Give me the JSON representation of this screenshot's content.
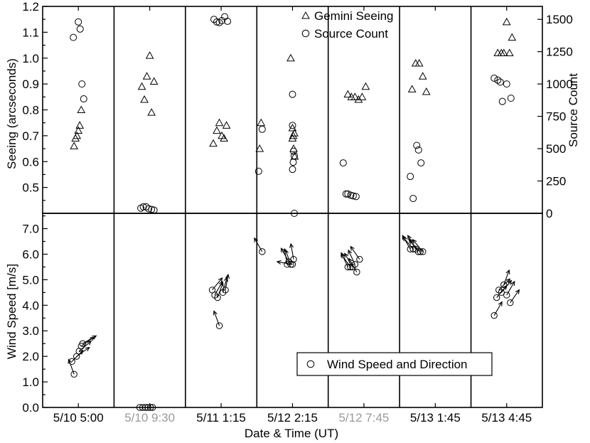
{
  "chart_data": [
    {
      "type": "scatter",
      "panel": "seeing",
      "xlabel": "Date & Time (UT)",
      "ylabel": "Seeing (arcseconds)",
      "ylabel_right": "Source Count",
      "ylim": [
        0.4,
        1.2
      ],
      "ylim_right": [
        0,
        1600
      ],
      "yticks": [
        "0.5",
        "0.6",
        "0.7",
        "0.8",
        "0.9",
        "1.0",
        "1.1",
        "1.2"
      ],
      "yticks_right": [
        "0",
        "250",
        "500",
        "750",
        "1000",
        "1250",
        "1500"
      ],
      "categories": [
        {
          "label": "5/10 5:00",
          "grey": false
        },
        {
          "label": "5/10 9:30",
          "grey": true
        },
        {
          "label": "5/11 1:15",
          "grey": false
        },
        {
          "label": "5/12 2:15",
          "grey": false
        },
        {
          "label": "5/12 7:45",
          "grey": true
        },
        {
          "label": "5/13 1:45",
          "grey": false
        },
        {
          "label": "5/13 4:45",
          "grey": false
        }
      ],
      "legend": [
        "Gemini Seeing",
        "Source Count"
      ],
      "legend_position": "top-center",
      "series": [
        {
          "name": "Gemini Seeing",
          "axis": "left",
          "marker": "triangle",
          "points": [
            [
              0,
              -0.12,
              0.66
            ],
            [
              0,
              -0.08,
              0.69
            ],
            [
              0,
              -0.04,
              0.7
            ],
            [
              0,
              0.0,
              0.72
            ],
            [
              0,
              0.04,
              0.74
            ],
            [
              0,
              0.08,
              0.8
            ],
            [
              1,
              -0.22,
              0.89
            ],
            [
              1,
              -0.15,
              0.84
            ],
            [
              1,
              -0.08,
              0.93
            ],
            [
              1,
              0.0,
              1.01
            ],
            [
              1,
              0.05,
              0.79
            ],
            [
              1,
              0.12,
              0.91
            ],
            [
              2,
              -0.22,
              0.67
            ],
            [
              2,
              -0.12,
              0.72
            ],
            [
              2,
              -0.05,
              0.75
            ],
            [
              2,
              0.02,
              0.7
            ],
            [
              2,
              0.08,
              0.69
            ],
            [
              2,
              0.15,
              0.74
            ],
            [
              3,
              -0.92,
              0.65
            ],
            [
              3,
              -0.88,
              0.75
            ],
            [
              3,
              -0.05,
              1.0
            ],
            [
              3,
              0.0,
              0.73
            ],
            [
              3,
              0.05,
              0.71
            ],
            [
              3,
              0.0,
              0.69
            ],
            [
              3,
              0.03,
              0.65
            ],
            [
              3,
              0.06,
              0.62
            ],
            [
              3,
              0.02,
              0.7
            ],
            [
              4,
              -0.45,
              0.86
            ],
            [
              4,
              -0.35,
              0.85
            ],
            [
              4,
              -0.25,
              0.85
            ],
            [
              4,
              -0.15,
              0.84
            ],
            [
              4,
              -0.05,
              0.85
            ],
            [
              4,
              0.05,
              0.89
            ],
            [
              5,
              -0.65,
              0.88
            ],
            [
              5,
              -0.55,
              0.98
            ],
            [
              5,
              -0.45,
              0.98
            ],
            [
              5,
              -0.35,
              0.93
            ],
            [
              5,
              -0.25,
              0.87
            ],
            [
              6,
              -0.25,
              1.02
            ],
            [
              6,
              -0.15,
              1.02
            ],
            [
              6,
              -0.08,
              1.02
            ],
            [
              6,
              0.0,
              1.14
            ],
            [
              6,
              0.08,
              1.02
            ],
            [
              6,
              0.15,
              1.08
            ]
          ]
        },
        {
          "name": "Source Count",
          "axis": "right",
          "marker": "circle",
          "points": [
            [
              0,
              -0.14,
              1360
            ],
            [
              0,
              0.0,
              1480
            ],
            [
              0,
              0.05,
              1425
            ],
            [
              0,
              0.1,
              1000
            ],
            [
              0,
              0.15,
              885
            ],
            [
              1,
              -0.25,
              40
            ],
            [
              1,
              -0.18,
              50
            ],
            [
              1,
              -0.1,
              50
            ],
            [
              1,
              -0.03,
              35
            ],
            [
              1,
              0.05,
              30
            ],
            [
              1,
              0.12,
              25
            ],
            [
              2,
              -0.2,
              1500
            ],
            [
              2,
              -0.12,
              1480
            ],
            [
              2,
              -0.05,
              1475
            ],
            [
              2,
              0.02,
              1490
            ],
            [
              2,
              0.1,
              1520
            ],
            [
              2,
              0.18,
              1485
            ],
            [
              3,
              -0.95,
              325
            ],
            [
              3,
              -0.85,
              650
            ],
            [
              3,
              0.0,
              920
            ],
            [
              3,
              0.0,
              680
            ],
            [
              3,
              0.03,
              480
            ],
            [
              3,
              0.05,
              445
            ],
            [
              3,
              0.02,
              395
            ],
            [
              3,
              0.0,
              340
            ],
            [
              3,
              0.05,
              0
            ],
            [
              4,
              -0.58,
              390
            ],
            [
              4,
              -0.5,
              150
            ],
            [
              4,
              -0.45,
              150
            ],
            [
              4,
              -0.37,
              140
            ],
            [
              4,
              -0.3,
              135
            ],
            [
              4,
              -0.22,
              130
            ],
            [
              5,
              -0.7,
              285
            ],
            [
              5,
              -0.62,
              115
            ],
            [
              5,
              -0.52,
              525
            ],
            [
              5,
              -0.47,
              490
            ],
            [
              5,
              -0.4,
              390
            ],
            [
              6,
              -0.35,
              1045
            ],
            [
              6,
              -0.25,
              1030
            ],
            [
              6,
              -0.18,
              1015
            ],
            [
              6,
              -0.12,
              865
            ],
            [
              6,
              0.0,
              1000
            ],
            [
              6,
              0.12,
              890
            ]
          ]
        }
      ]
    },
    {
      "type": "scatter",
      "panel": "wind",
      "xlabel": "Date & Time (UT)",
      "ylabel": "Wind Speed [m/s]",
      "ylim": [
        0.0,
        7.6
      ],
      "yticks": [
        "0.0",
        "1.0",
        "2.0",
        "3.0",
        "4.0",
        "5.0",
        "6.0",
        "7.0"
      ],
      "legend": [
        "Wind Speed and Direction"
      ],
      "legend_position": "bottom-right",
      "series": [
        {
          "name": "Wind Speed and Direction",
          "marker": "circle-with-arrow",
          "points": [
            [
              0,
              -0.18,
              1.8,
              -45
            ],
            [
              0,
              -0.12,
              1.3,
              -110
            ],
            [
              0,
              -0.05,
              2.0,
              -35
            ],
            [
              0,
              0.02,
              2.2,
              -40
            ],
            [
              0,
              0.08,
              2.4,
              -35
            ],
            [
              0,
              0.12,
              2.5,
              -30
            ],
            [
              1,
              -0.28,
              0.0,
              0
            ],
            [
              1,
              -0.2,
              0.0,
              0
            ],
            [
              1,
              -0.12,
              0.0,
              0
            ],
            [
              1,
              -0.05,
              0.0,
              0
            ],
            [
              1,
              0.02,
              0.0,
              0
            ],
            [
              1,
              0.08,
              0.0,
              0
            ],
            [
              2,
              -0.25,
              4.6,
              -50
            ],
            [
              2,
              -0.18,
              4.4,
              -60
            ],
            [
              2,
              -0.1,
              4.3,
              -70
            ],
            [
              2,
              -0.05,
              3.2,
              -110
            ],
            [
              2,
              0.05,
              4.5,
              -75
            ],
            [
              2,
              0.12,
              4.6,
              -80
            ],
            [
              3,
              -0.85,
              6.1,
              -120
            ],
            [
              3,
              -0.15,
              5.6,
              -100
            ],
            [
              3,
              -0.1,
              5.7,
              -120
            ],
            [
              3,
              -0.05,
              5.6,
              -110
            ],
            [
              3,
              0.0,
              5.6,
              -170
            ],
            [
              3,
              0.03,
              5.8,
              -100
            ],
            [
              4,
              -0.45,
              5.5,
              -115
            ],
            [
              4,
              -0.38,
              5.5,
              -125
            ],
            [
              4,
              -0.32,
              5.5,
              -120
            ],
            [
              4,
              -0.25,
              5.6,
              -115
            ],
            [
              4,
              -0.2,
              5.3,
              -120
            ],
            [
              4,
              -0.12,
              5.8,
              -125
            ],
            [
              5,
              -0.7,
              6.2,
              -120
            ],
            [
              5,
              -0.62,
              6.2,
              -130
            ],
            [
              5,
              -0.55,
              6.2,
              -120
            ],
            [
              5,
              -0.48,
              6.1,
              -125
            ],
            [
              5,
              -0.42,
              6.1,
              -135
            ],
            [
              5,
              -0.35,
              6.1,
              -130
            ],
            [
              6,
              -0.35,
              3.6,
              -60
            ],
            [
              6,
              -0.28,
              4.3,
              -50
            ],
            [
              6,
              -0.22,
              4.6,
              -45
            ],
            [
              6,
              -0.15,
              4.5,
              -50
            ],
            [
              6,
              -0.08,
              4.8,
              -70
            ],
            [
              6,
              0.0,
              4.4,
              -60
            ],
            [
              6,
              0.1,
              4.1,
              -55
            ]
          ]
        }
      ]
    }
  ]
}
